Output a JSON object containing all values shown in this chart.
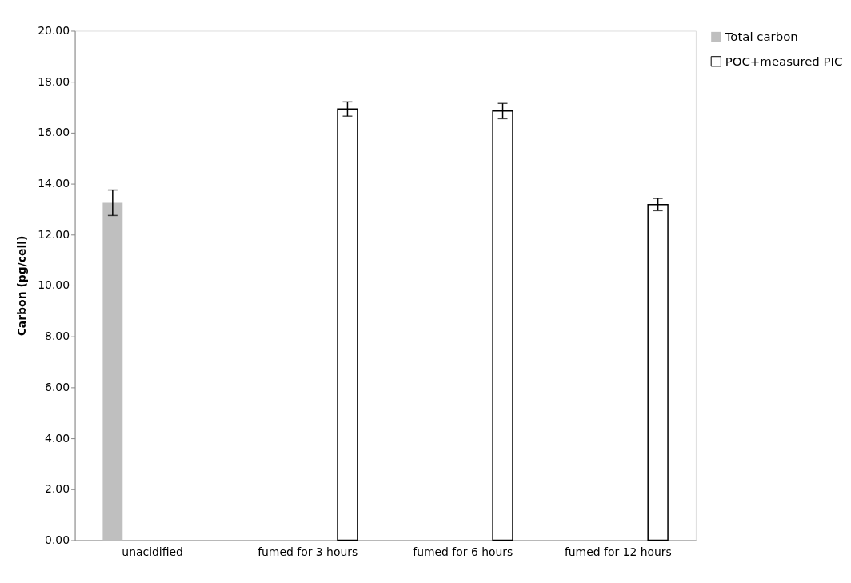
{
  "chart_data": {
    "type": "bar",
    "ylabel": "Carbon (pg/cell)",
    "categories": [
      "unacidified",
      "fumed for 3 hours",
      "fumed for 6 hours",
      "fumed for 12 hours"
    ],
    "series": [
      {
        "name": "Total carbon",
        "color": "#bfbfbf",
        "values": [
          13.25,
          null,
          null,
          null
        ],
        "errors": [
          0.5,
          null,
          null,
          null
        ]
      },
      {
        "name": "POC+measured PIC",
        "color": "#ffffff",
        "values": [
          null,
          16.93,
          16.85,
          13.18
        ],
        "errors": [
          null,
          0.28,
          0.3,
          0.24
        ]
      }
    ],
    "ylim": [
      0,
      20
    ],
    "yticks": [
      {
        "value": 0,
        "label": "0.00"
      },
      {
        "value": 2,
        "label": "2.00"
      },
      {
        "value": 4,
        "label": "4.00"
      },
      {
        "value": 6,
        "label": "6.00"
      },
      {
        "value": 8,
        "label": "8.00"
      },
      {
        "value": 10,
        "label": "10.00"
      },
      {
        "value": 12,
        "label": "12.00"
      },
      {
        "value": 14,
        "label": "14.00"
      },
      {
        "value": 16,
        "label": "16.00"
      },
      {
        "value": 18,
        "label": "18.00"
      },
      {
        "value": 20,
        "label": "20.00"
      }
    ],
    "grid": false,
    "legend": "right"
  }
}
